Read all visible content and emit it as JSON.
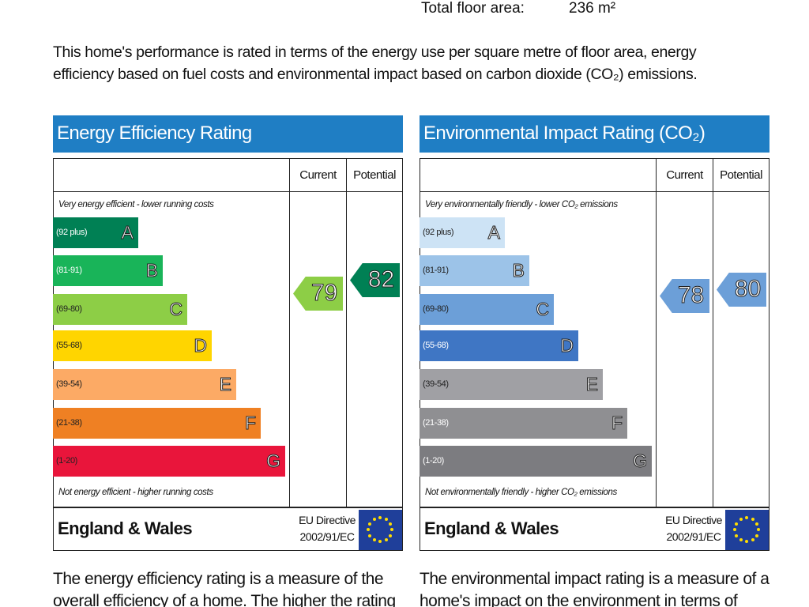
{
  "floor_area": {
    "label": "Total floor area:",
    "value": "236 m²"
  },
  "intro": [
    "This home's performance is rated in terms of the energy use per square metre of floor area, energy",
    "efficiency based on fuel costs and environmental impact based on carbon dioxide (CO₂) emissions."
  ],
  "panels": [
    {
      "title": "Energy Efficiency Rating",
      "headers": [
        "Current",
        "Potential"
      ],
      "top_note": "Very energy efficient - lower running costs",
      "bottom_note": "Not energy efficient - higher running costs",
      "bands": [
        {
          "range": "(92 plus)",
          "letter": "A"
        },
        {
          "range": "(81-91)",
          "letter": "B"
        },
        {
          "range": "(69-80)",
          "letter": "C"
        },
        {
          "range": "(55-68)",
          "letter": "D"
        },
        {
          "range": "(39-54)",
          "letter": "E"
        },
        {
          "range": "(21-38)",
          "letter": "F"
        },
        {
          "range": "(1-20)",
          "letter": "G"
        }
      ],
      "current": 79,
      "potential": 82,
      "region": "England & Wales",
      "directive": [
        "EU Directive",
        "2002/91/EC"
      ],
      "description": [
        "The energy efficiency rating is a measure of the",
        "overall efficiency of a home. The higher the rating"
      ]
    },
    {
      "title": "Environmental Impact Rating (CO₂)",
      "headers": [
        "Current",
        "Potential"
      ],
      "top_note": "Very environmentally friendly - lower CO₂ emissions",
      "bottom_note": "Not environmentally friendly - higher CO₂ emissions",
      "bands": [
        {
          "range": "(92 plus)",
          "letter": "A"
        },
        {
          "range": "(81-91)",
          "letter": "B"
        },
        {
          "range": "(69-80)",
          "letter": "C"
        },
        {
          "range": "(55-68)",
          "letter": "D"
        },
        {
          "range": "(39-54)",
          "letter": "E"
        },
        {
          "range": "(21-38)",
          "letter": "F"
        },
        {
          "range": "(1-20)",
          "letter": "G"
        }
      ],
      "current": 78,
      "potential": 80,
      "region": "England & Wales",
      "directive": [
        "EU Directive",
        "2002/91/EC"
      ],
      "description": [
        "The environmental impact rating is a measure of a",
        "home's impact on the environment in terms of"
      ]
    }
  ]
}
